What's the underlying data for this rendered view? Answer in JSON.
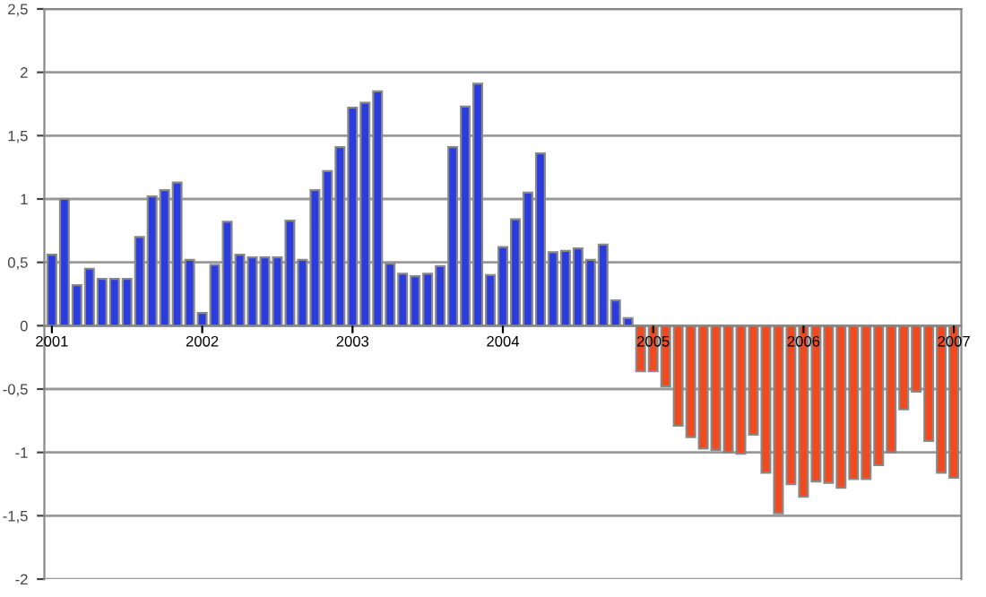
{
  "chart_data": {
    "type": "bar",
    "categories": [
      "2001",
      null,
      null,
      null,
      null,
      null,
      null,
      null,
      null,
      null,
      null,
      null,
      "2002",
      null,
      null,
      null,
      null,
      null,
      null,
      null,
      null,
      null,
      null,
      null,
      "2003",
      null,
      null,
      null,
      null,
      null,
      null,
      null,
      null,
      null,
      null,
      null,
      "2004",
      null,
      null,
      null,
      null,
      null,
      null,
      null,
      null,
      null,
      null,
      null,
      "2005",
      null,
      null,
      null,
      null,
      null,
      null,
      null,
      null,
      null,
      null,
      null,
      "2006",
      null,
      null,
      null,
      null,
      null,
      null,
      null,
      null,
      null,
      null,
      null,
      "2007"
    ],
    "values": [
      0.56,
      1.0,
      0.32,
      0.45,
      0.37,
      0.37,
      0.37,
      0.7,
      1.02,
      1.07,
      1.13,
      0.52,
      0.1,
      0.48,
      0.82,
      0.56,
      0.54,
      0.54,
      0.54,
      0.83,
      0.52,
      1.07,
      1.22,
      1.41,
      1.72,
      1.76,
      1.85,
      0.49,
      0.41,
      0.39,
      0.41,
      0.47,
      1.41,
      1.73,
      1.91,
      0.4,
      0.62,
      0.84,
      1.05,
      1.36,
      0.58,
      0.59,
      0.61,
      0.52,
      0.64,
      0.2,
      0.06,
      -0.36,
      -0.36,
      -0.48,
      -0.79,
      -0.88,
      -0.97,
      -0.98,
      -1.0,
      -1.01,
      -0.86,
      -1.16,
      -1.48,
      -1.25,
      -1.35,
      -1.23,
      -1.24,
      -1.28,
      -1.21,
      -1.21,
      -1.1,
      -1.0,
      -0.66,
      -0.52,
      -0.91,
      -1.16,
      -1.2
    ],
    "colors": [
      "#2a3be0",
      "#2a3be0",
      "#2a3be0",
      "#2a3be0",
      "#2a3be0",
      "#2a3be0",
      "#2a3be0",
      "#2a3be0",
      "#2a3be0",
      "#2a3be0",
      "#2a3be0",
      "#2a3be0",
      "#2a3be0",
      "#2a3be0",
      "#2a3be0",
      "#2a3be0",
      "#2a3be0",
      "#2a3be0",
      "#2a3be0",
      "#2a3be0",
      "#2a3be0",
      "#2a3be0",
      "#2a3be0",
      "#2a3be0",
      "#2a3be0",
      "#2a3be0",
      "#2a3be0",
      "#2a3be0",
      "#2a3be0",
      "#2a3be0",
      "#2a3be0",
      "#2a3be0",
      "#2a3be0",
      "#2a3be0",
      "#2a3be0",
      "#2a3be0",
      "#2a3be0",
      "#2a3be0",
      "#2a3be0",
      "#2a3be0",
      "#2a3be0",
      "#2a3be0",
      "#2a3be0",
      "#2a3be0",
      "#2a3be0",
      "#2a3be0",
      "#2a3be0",
      "#f04a1e",
      "#f04a1e",
      "#f04a1e",
      "#f04a1e",
      "#f04a1e",
      "#f04a1e",
      "#f04a1e",
      "#f04a1e",
      "#f04a1e",
      "#f04a1e",
      "#f04a1e",
      "#f04a1e",
      "#f04a1e",
      "#f04a1e",
      "#f04a1e",
      "#f04a1e",
      "#f04a1e",
      "#f04a1e",
      "#f04a1e",
      "#f04a1e",
      "#f04a1e",
      "#f04a1e",
      "#f04a1e",
      "#f04a1e",
      "#f04a1e",
      "#f04a1e"
    ],
    "ylim": [
      -2,
      2.5
    ],
    "yticks": [
      -2,
      {
        "value": -1.5,
        "label": "-1,5"
      },
      -1,
      {
        "value": -0.5,
        "label": "-0,5"
      },
      0,
      {
        "value": 0.5,
        "label": "0,5"
      },
      1,
      {
        "value": 1.5,
        "label": "1,5"
      },
      2,
      {
        "value": 2.5,
        "label": "2,5"
      }
    ],
    "grid": "y"
  }
}
